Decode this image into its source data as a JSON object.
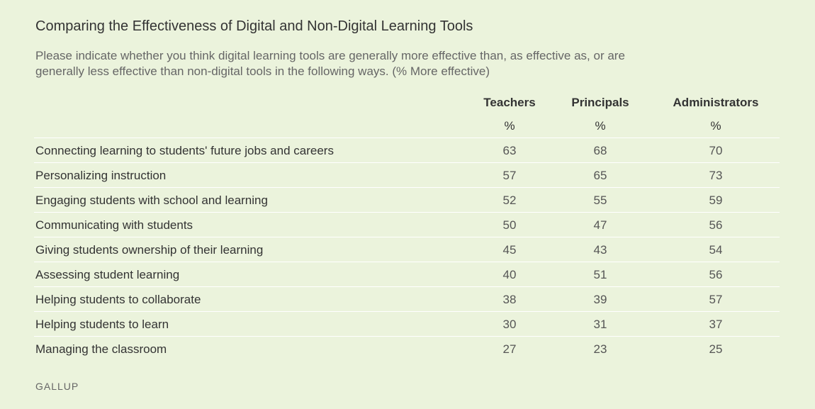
{
  "header": {
    "title": "Comparing the Effectiveness of Digital and Non-Digital Learning Tools",
    "subtitle": "Please indicate whether you think digital learning tools are generally more effective than, as effective as, or are generally less effective than non-digital tools in the following ways. (% More effective)"
  },
  "chart_data": {
    "type": "table",
    "columns": [
      {
        "name": "Teachers",
        "unit": "%"
      },
      {
        "name": "Principals",
        "unit": "%"
      },
      {
        "name": "Administrators",
        "unit": "%"
      }
    ],
    "rows": [
      {
        "label": "Connecting learning to students' future jobs and careers",
        "values": [
          63,
          68,
          70
        ]
      },
      {
        "label": "Personalizing instruction",
        "values": [
          57,
          65,
          73
        ]
      },
      {
        "label": "Engaging students with school and learning",
        "values": [
          52,
          55,
          59
        ]
      },
      {
        "label": "Communicating with students",
        "values": [
          50,
          47,
          56
        ]
      },
      {
        "label": "Giving students ownership of their learning",
        "values": [
          45,
          43,
          54
        ]
      },
      {
        "label": "Assessing student learning",
        "values": [
          40,
          51,
          56
        ]
      },
      {
        "label": "Helping students to collaborate",
        "values": [
          38,
          39,
          57
        ]
      },
      {
        "label": "Helping students to learn",
        "values": [
          30,
          31,
          37
        ]
      },
      {
        "label": "Managing the classroom",
        "values": [
          27,
          23,
          25
        ]
      }
    ]
  },
  "footer": {
    "source": "GALLUP"
  }
}
